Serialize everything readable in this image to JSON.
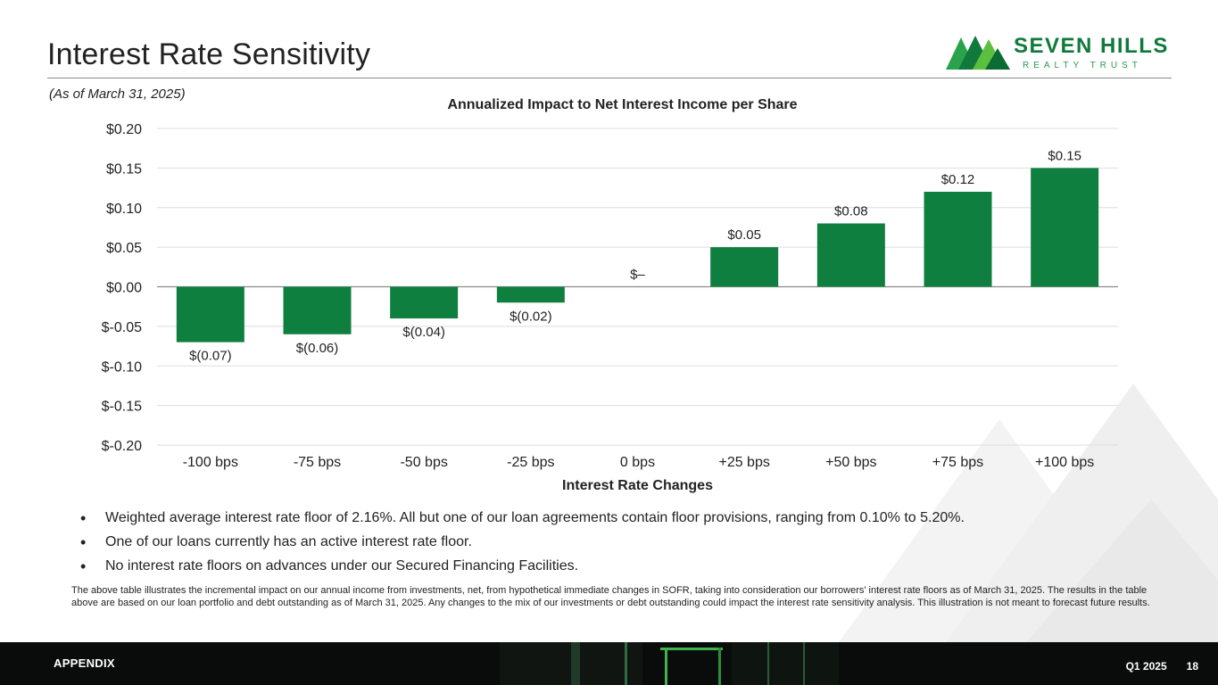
{
  "header": {
    "title": "Interest Rate Sensitivity",
    "as_of": "(As of March 31, 2025)"
  },
  "logo": {
    "name": "SEVEN HILLS",
    "sub": "REALTY TRUST"
  },
  "chart_data": {
    "type": "bar",
    "title": "Annualized Impact to Net Interest Income per Share",
    "xlabel": "Interest Rate Changes",
    "ylabel": "",
    "categories": [
      "-100 bps",
      "-75 bps",
      "-50 bps",
      "-25 bps",
      "0 bps",
      "+25 bps",
      "+50 bps",
      "+75 bps",
      "+100 bps"
    ],
    "values": [
      -0.07,
      -0.06,
      -0.04,
      -0.02,
      0,
      0.05,
      0.08,
      0.12,
      0.15
    ],
    "data_labels": [
      "$(0.07)",
      "$(0.06)",
      "$(0.04)",
      "$(0.02)",
      "$–",
      "$0.05",
      "$0.08",
      "$0.12",
      "$0.15"
    ],
    "ylim": [
      -0.2,
      0.2
    ],
    "yticks": [
      0.2,
      0.15,
      0.1,
      0.05,
      0,
      -0.05,
      -0.1,
      -0.15,
      -0.2
    ],
    "ytick_labels": [
      "$0.20",
      "$0.15",
      "$0.10",
      "$0.05",
      "$0.00",
      "$-0.05",
      "$-0.10",
      "$-0.15",
      "$-0.20"
    ],
    "grid": true,
    "bar_color": "#0f7f3f"
  },
  "bullets": [
    "Weighted average interest rate floor of 2.16%. All but one of our loan agreements contain floor provisions, ranging from 0.10% to 5.20%.",
    "One of our loans currently has an active interest rate floor.",
    "No interest rate floors on advances under our Secured Financing Facilities."
  ],
  "footnote": "The above table illustrates the incremental impact on our annual income from investments, net, from hypothetical immediate changes in SOFR, taking into consideration our borrowers' interest rate floors as of March 31, 2025. The results in the table above are based on our loan portfolio and debt outstanding as of March 31, 2025. Any changes to the mix of our investments or debt outstanding could impact the interest rate sensitivity analysis. This illustration is not meant to forecast future results.",
  "footer": {
    "section": "APPENDIX",
    "period": "Q1 2025",
    "page": "18"
  },
  "colors": {
    "brand_green": "#0f7a3b",
    "bar": "#0f7f3f",
    "footer_bg": "#0a0c0b"
  }
}
